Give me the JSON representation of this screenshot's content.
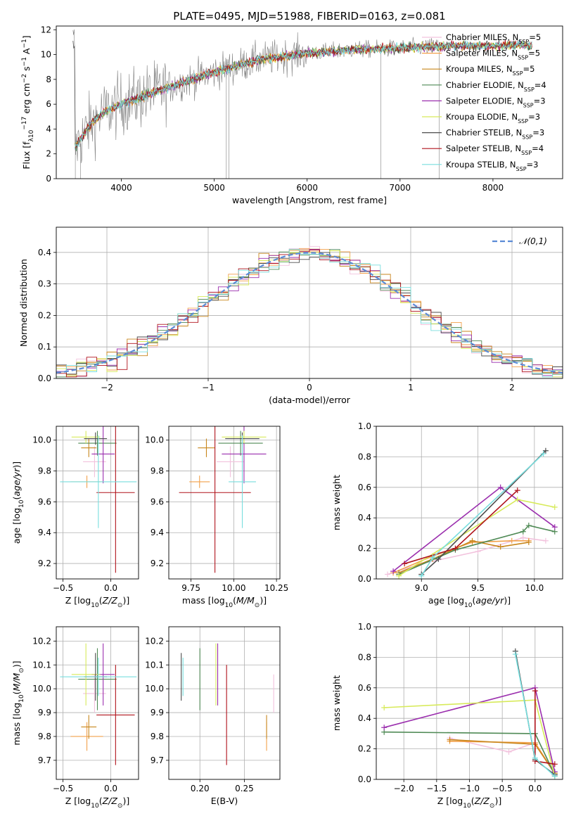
{
  "title": "PLATE=0495, MJD=51988, FIBERID=0163, z=0.081",
  "colors": {
    "Chabrier MILES": "#f2c2dd",
    "Salpeter MILES": "#f2a04a",
    "Kroupa MILES": "#c8861c",
    "Chabrier ELODIE": "#4f8a55",
    "Salpeter ELODIE": "#9b2fae",
    "Kroupa ELODIE": "#d7ea5a",
    "Chabrier STELIB": "#4d4d4d",
    "Salpeter STELIB": "#b0121b",
    "Kroupa STELIB": "#78dede",
    "data": "#808080",
    "normal": "#5b8bd6"
  },
  "chart_data": [
    {
      "id": "spectrum",
      "type": "line",
      "title": "PLATE=0495, MJD=51988, FIBERID=0163, z=0.081",
      "xlabel": "wavelength [Angstrom, rest frame]",
      "ylabel": "Flux [f_λ 10^-17 erg cm^-2 s^-1 A^-1]",
      "ylabel_parts": [
        "Flux [f",
        "λ",
        "10",
        "−17",
        " erg cm",
        "−2",
        " s",
        "−1",
        " A",
        "−1",
        "]"
      ],
      "xlim": [
        3300,
        8750
      ],
      "ylim": [
        0,
        12.3
      ],
      "xticks": [
        "4000",
        "5000",
        "6000",
        "7000",
        "8000"
      ],
      "xtick_values": [
        4000,
        5000,
        6000,
        7000,
        8000
      ],
      "yticks": [
        "0",
        "2",
        "4",
        "6",
        "8",
        "10",
        "12"
      ],
      "ytick_values": [
        0,
        2,
        4,
        6,
        8,
        10,
        12
      ],
      "continuum": [
        [
          3500,
          2.5
        ],
        [
          3650,
          4.2
        ],
        [
          3800,
          5.3
        ],
        [
          4000,
          6.0
        ],
        [
          4300,
          6.8
        ],
        [
          4600,
          7.6
        ],
        [
          5000,
          8.6
        ],
        [
          5500,
          9.6
        ],
        [
          6000,
          10.1
        ],
        [
          6500,
          10.4
        ],
        [
          7000,
          10.5
        ],
        [
          7500,
          10.7
        ],
        [
          8000,
          10.7
        ],
        [
          8300,
          10.8
        ],
        [
          8420,
          10.7
        ]
      ],
      "legend": [
        {
          "label": "Chabrier MILES, N",
          "sub": "SSP",
          "n": "=5"
        },
        {
          "label": "Salpeter MILES, N",
          "sub": "SSP",
          "n": "=5"
        },
        {
          "label": "Kroupa MILES, N",
          "sub": "SSP",
          "n": "=5"
        },
        {
          "label": "Chabrier ELODIE, N",
          "sub": "SSP",
          "n": "=4"
        },
        {
          "label": "Salpeter ELODIE, N",
          "sub": "SSP",
          "n": "=3"
        },
        {
          "label": "Kroupa ELODIE, N",
          "sub": "SSP",
          "n": "=3"
        },
        {
          "label": "Chabrier STELIB, N",
          "sub": "SSP",
          "n": "=3"
        },
        {
          "label": "Salpeter STELIB, N",
          "sub": "SSP",
          "n": "=4"
        },
        {
          "label": "Kroupa STELIB, N",
          "sub": "SSP",
          "n": "=3"
        }
      ]
    },
    {
      "id": "residuals",
      "type": "line",
      "xlabel": "(data-model)/error",
      "ylabel": "Normed distribution",
      "xlim": [
        -2.5,
        2.5
      ],
      "ylim": [
        0,
        0.48
      ],
      "xticks": [
        "−2",
        "−1",
        "0",
        "1",
        "2"
      ],
      "xtick_values": [
        -2,
        -1,
        0,
        1,
        2
      ],
      "yticks": [
        "0.0",
        "0.1",
        "0.2",
        "0.3",
        "0.4"
      ],
      "ytick_values": [
        0,
        0.1,
        0.2,
        0.3,
        0.4
      ],
      "grid": true,
      "legend_label": "𝒩(0,1)",
      "bin_width": 0.1
    },
    {
      "id": "age-vs-Z",
      "type": "scatter",
      "xlabel": "Z [log10(Z/Z⊙)]",
      "xlabel_parts": [
        "Z [log",
        "10",
        "(",
        "Z/Z",
        "⊙",
        ")]"
      ],
      "ylabel": "age [log10(age/yr)]",
      "ylabel_parts": [
        "age  [log",
        "10",
        "(",
        "age/yr",
        ")]"
      ],
      "xlim": [
        -0.57,
        0.29
      ],
      "ylim": [
        9.1,
        10.09
      ],
      "xticks": [
        "−0.5",
        "0.0"
      ],
      "xtick_values": [
        -0.5,
        0.0
      ],
      "yticks": [
        "9.2",
        "9.4",
        "9.6",
        "9.8",
        "10.0"
      ],
      "ytick_values": [
        9.2,
        9.4,
        9.6,
        9.8,
        10.0
      ],
      "grid": true,
      "points": [
        {
          "name": "Chabrier MILES",
          "x": -0.17,
          "xerr": 0.12,
          "y": 9.86,
          "yerr": 0.1
        },
        {
          "name": "Salpeter MILES",
          "x": -0.25,
          "xerr": 0.17,
          "y": 9.73,
          "yerr": 0.04
        },
        {
          "name": "Kroupa MILES",
          "x": -0.23,
          "xerr": 0.08,
          "y": 9.95,
          "yerr": 0.06
        },
        {
          "name": "Chabrier ELODIE",
          "x": -0.14,
          "xerr": 0.2,
          "y": 9.98,
          "yerr": 0.08
        },
        {
          "name": "Salpeter ELODIE",
          "x": -0.08,
          "xerr": 0.12,
          "y": 9.91,
          "yerr": 0.19
        },
        {
          "name": "Kroupa ELODIE",
          "x": -0.26,
          "xerr": 0.15,
          "y": 10.02,
          "yerr": 0.04
        },
        {
          "name": "Chabrier STELIB",
          "x": -0.16,
          "xerr": 0.12,
          "y": 10.01,
          "yerr": 0.04
        },
        {
          "name": "Salpeter STELIB",
          "x": 0.05,
          "xerr": 0.2,
          "y": 9.66,
          "yerr": 0.52
        },
        {
          "name": "Kroupa STELIB",
          "x": -0.13,
          "xerr": 0.4,
          "y": 9.73,
          "yerr": 0.3
        }
      ]
    },
    {
      "id": "age-vs-mass",
      "type": "scatter",
      "xlabel": "mass [log10(M/M⊙)]",
      "xlabel_parts": [
        "mass [log",
        "10",
        "(",
        "M/M",
        "⊙",
        ")]"
      ],
      "xlim": [
        9.62,
        10.27
      ],
      "ylim": [
        9.1,
        10.09
      ],
      "xticks": [
        "9.75",
        "10.00",
        "10.25"
      ],
      "xtick_values": [
        9.75,
        10.0,
        10.25
      ],
      "yticks": [
        "9.2",
        "9.4",
        "9.6",
        "9.8",
        "10.0"
      ],
      "ytick_values": [
        9.2,
        9.4,
        9.6,
        9.8,
        10.0
      ],
      "grid": true,
      "points": [
        {
          "name": "Chabrier MILES",
          "x": 9.98,
          "xerr": 0.08,
          "y": 9.86,
          "yerr": 0.1
        },
        {
          "name": "Salpeter MILES",
          "x": 9.8,
          "xerr": 0.06,
          "y": 9.73,
          "yerr": 0.04
        },
        {
          "name": "Kroupa MILES",
          "x": 9.84,
          "xerr": 0.05,
          "y": 9.95,
          "yerr": 0.06
        },
        {
          "name": "Chabrier ELODIE",
          "x": 10.04,
          "xerr": 0.13,
          "y": 9.98,
          "yerr": 0.08
        },
        {
          "name": "Salpeter ELODIE",
          "x": 10.06,
          "xerr": 0.13,
          "y": 9.91,
          "yerr": 0.19
        },
        {
          "name": "Kroupa ELODIE",
          "x": 10.06,
          "xerr": 0.13,
          "y": 10.02,
          "yerr": 0.04
        },
        {
          "name": "Chabrier STELIB",
          "x": 10.05,
          "xerr": 0.1,
          "y": 10.01,
          "yerr": 0.04
        },
        {
          "name": "Salpeter STELIB",
          "x": 9.89,
          "xerr": 0.21,
          "y": 9.66,
          "yerr": 0.52
        },
        {
          "name": "Kroupa STELIB",
          "x": 10.05,
          "xerr": 0.08,
          "y": 9.73,
          "yerr": 0.3
        }
      ]
    },
    {
      "id": "weight-vs-age",
      "type": "line",
      "xlabel": "age [log10(age/yr)]",
      "xlabel_parts": [
        "age  [log",
        "10",
        "(",
        "age/yr",
        ")]"
      ],
      "ylabel": "mass weight",
      "xlim": [
        8.6,
        10.25
      ],
      "ylim": [
        0,
        1.0
      ],
      "xticks": [
        "9.0",
        "9.5",
        "10.0"
      ],
      "xtick_values": [
        9.0,
        9.5,
        10.0
      ],
      "yticks": [
        "0.0",
        "0.2",
        "0.4",
        "0.6",
        "0.8",
        "1.0"
      ],
      "ytick_values": [
        0,
        0.2,
        0.4,
        0.6,
        0.8,
        1.0
      ],
      "grid": true,
      "series": [
        {
          "name": "Chabrier MILES",
          "points": [
            [
              8.7,
              0.03
            ],
            [
              9.0,
              0.1
            ],
            [
              9.5,
              0.18
            ],
            [
              9.9,
              0.27
            ],
            [
              10.1,
              0.25
            ]
          ]
        },
        {
          "name": "Salpeter MILES",
          "points": [
            [
              8.75,
              0.04
            ],
            [
              9.1,
              0.15
            ],
            [
              9.45,
              0.24
            ],
            [
              9.8,
              0.25
            ],
            [
              9.95,
              0.25
            ]
          ]
        },
        {
          "name": "Kroupa MILES",
          "points": [
            [
              8.8,
              0.04
            ],
            [
              9.1,
              0.13
            ],
            [
              9.45,
              0.25
            ],
            [
              9.7,
              0.21
            ],
            [
              9.95,
              0.24
            ]
          ]
        },
        {
          "name": "Chabrier ELODIE",
          "points": [
            [
              8.8,
              0.03
            ],
            [
              9.3,
              0.19
            ],
            [
              9.9,
              0.31
            ],
            [
              9.95,
              0.35
            ],
            [
              10.18,
              0.31
            ]
          ]
        },
        {
          "name": "Salpeter ELODIE",
          "points": [
            [
              8.75,
              0.05
            ],
            [
              9.7,
              0.6
            ],
            [
              10.18,
              0.34
            ]
          ]
        },
        {
          "name": "Kroupa ELODIE",
          "points": [
            [
              8.8,
              0.02
            ],
            [
              9.85,
              0.52
            ],
            [
              10.18,
              0.47
            ]
          ]
        },
        {
          "name": "Chabrier STELIB",
          "points": [
            [
              9.0,
              0.03
            ],
            [
              9.15,
              0.13
            ],
            [
              10.1,
              0.84
            ]
          ]
        },
        {
          "name": "Salpeter STELIB",
          "points": [
            [
              8.85,
              0.1
            ],
            [
              9.3,
              0.2
            ],
            [
              9.85,
              0.58
            ]
          ]
        },
        {
          "name": "Kroupa STELIB",
          "points": [
            [
              9.0,
              0.02
            ],
            [
              9.1,
              0.14
            ],
            [
              10.08,
              0.82
            ]
          ]
        }
      ]
    },
    {
      "id": "mass-vs-Z",
      "type": "scatter",
      "xlabel": "Z [log10(Z/Z⊙)]",
      "xlabel_parts": [
        "Z [log",
        "10",
        "(",
        "Z/Z",
        "⊙",
        ")]"
      ],
      "ylabel": "mass [log10(M/M⊙)]",
      "ylabel_parts": [
        "mass [log",
        "10",
        "(",
        "M/M",
        "⊙",
        ")]"
      ],
      "xlim": [
        -0.57,
        0.29
      ],
      "ylim": [
        9.62,
        10.26
      ],
      "xticks": [
        "−0.5",
        "0.0"
      ],
      "xtick_values": [
        -0.5,
        0.0
      ],
      "yticks": [
        "9.7",
        "9.8",
        "9.9",
        "10.0",
        "10.1",
        "10.2"
      ],
      "ytick_values": [
        9.7,
        9.8,
        9.9,
        10.0,
        10.1,
        10.2
      ],
      "grid": true,
      "points": [
        {
          "name": "Chabrier MILES",
          "x": -0.17,
          "xerr": 0.12,
          "y": 9.98,
          "yerr": 0.08
        },
        {
          "name": "Salpeter MILES",
          "x": -0.25,
          "xerr": 0.17,
          "y": 9.8,
          "yerr": 0.06
        },
        {
          "name": "Kroupa MILES",
          "x": -0.23,
          "xerr": 0.08,
          "y": 9.84,
          "yerr": 0.05
        },
        {
          "name": "Chabrier ELODIE",
          "x": -0.14,
          "xerr": 0.2,
          "y": 10.04,
          "yerr": 0.13
        },
        {
          "name": "Salpeter ELODIE",
          "x": -0.08,
          "xerr": 0.12,
          "y": 10.06,
          "yerr": 0.13
        },
        {
          "name": "Kroupa ELODIE",
          "x": -0.26,
          "xerr": 0.15,
          "y": 10.06,
          "yerr": 0.13
        },
        {
          "name": "Chabrier STELIB",
          "x": -0.16,
          "xerr": 0.12,
          "y": 10.05,
          "yerr": 0.1
        },
        {
          "name": "Salpeter STELIB",
          "x": 0.05,
          "xerr": 0.2,
          "y": 9.89,
          "yerr": 0.21
        },
        {
          "name": "Kroupa STELIB",
          "x": -0.13,
          "xerr": 0.4,
          "y": 10.05,
          "yerr": 0.08
        }
      ]
    },
    {
      "id": "mass-vs-ebv",
      "type": "scatter",
      "xlabel": "E(B-V)",
      "xlim": [
        0.165,
        0.29
      ],
      "ylim": [
        9.62,
        10.26
      ],
      "xticks": [
        "0.20",
        "0.25"
      ],
      "xtick_values": [
        0.2,
        0.25
      ],
      "yticks": [
        "9.7",
        "9.8",
        "9.9",
        "10.0",
        "10.1",
        "10.2"
      ],
      "ytick_values": [
        9.7,
        9.8,
        9.9,
        10.0,
        10.1,
        10.2
      ],
      "grid": true,
      "points": [
        {
          "name": "Chabrier MILES",
          "x": 0.283,
          "y": 9.98,
          "yerr": 0.08
        },
        {
          "name": "Salpeter MILES",
          "x": 0.275,
          "y": 9.8,
          "yerr": 0.06
        },
        {
          "name": "Kroupa MILES",
          "x": 0.275,
          "y": 9.84,
          "yerr": 0.05
        },
        {
          "name": "Chabrier ELODIE",
          "x": 0.2,
          "y": 10.04,
          "yerr": 0.13
        },
        {
          "name": "Salpeter ELODIE",
          "x": 0.22,
          "y": 10.06,
          "yerr": 0.13
        },
        {
          "name": "Kroupa ELODIE",
          "x": 0.218,
          "y": 10.06,
          "yerr": 0.13
        },
        {
          "name": "Chabrier STELIB",
          "x": 0.179,
          "y": 10.05,
          "yerr": 0.1
        },
        {
          "name": "Salpeter STELIB",
          "x": 0.23,
          "y": 9.89,
          "yerr": 0.21
        },
        {
          "name": "Kroupa STELIB",
          "x": 0.181,
          "y": 10.05,
          "yerr": 0.08
        }
      ]
    },
    {
      "id": "weight-vs-Z",
      "type": "line",
      "xlabel": "Z [log10(Z/Z⊙)]",
      "xlabel_parts": [
        "Z [log",
        "10",
        "(",
        "Z/Z",
        "⊙",
        ")]"
      ],
      "ylabel": "mass weight",
      "xlim": [
        -2.42,
        0.42
      ],
      "ylim": [
        0,
        1.0
      ],
      "xticks": [
        "−2.0",
        "−1.5",
        "−1.0",
        "−0.5",
        "0.0"
      ],
      "xtick_values": [
        -2.0,
        -1.5,
        -1.0,
        -0.5,
        0.0
      ],
      "yticks": [
        "0.0",
        "0.2",
        "0.4",
        "0.6",
        "0.8",
        "1.0"
      ],
      "ytick_values": [
        0,
        0.2,
        0.4,
        0.6,
        0.8,
        1.0
      ],
      "grid": true,
      "series": [
        {
          "name": "Chabrier MILES",
          "points": [
            [
              -1.3,
              0.27
            ],
            [
              -0.4,
              0.18
            ],
            [
              0.0,
              0.24
            ],
            [
              0.3,
              0.03
            ]
          ]
        },
        {
          "name": "Salpeter MILES",
          "points": [
            [
              -1.3,
              0.25
            ],
            [
              0.0,
              0.24
            ],
            [
              0.3,
              0.04
            ]
          ]
        },
        {
          "name": "Kroupa MILES",
          "points": [
            [
              -1.3,
              0.26
            ],
            [
              0.0,
              0.23
            ],
            [
              0.3,
              0.04
            ]
          ]
        },
        {
          "name": "Chabrier ELODIE",
          "points": [
            [
              -2.3,
              0.31
            ],
            [
              0.0,
              0.3
            ],
            [
              0.3,
              0.03
            ]
          ]
        },
        {
          "name": "Salpeter ELODIE",
          "points": [
            [
              -2.3,
              0.34
            ],
            [
              0.0,
              0.6
            ],
            [
              0.3,
              0.05
            ]
          ]
        },
        {
          "name": "Kroupa ELODIE",
          "points": [
            [
              -2.3,
              0.47
            ],
            [
              0.0,
              0.52
            ],
            [
              0.3,
              0.02
            ]
          ]
        },
        {
          "name": "Chabrier STELIB",
          "points": [
            [
              -0.3,
              0.84
            ],
            [
              0.0,
              0.13
            ],
            [
              0.3,
              0.03
            ]
          ]
        },
        {
          "name": "Salpeter STELIB",
          "points": [
            [
              0.0,
              0.58
            ],
            [
              0.0,
              0.12
            ],
            [
              0.3,
              0.1
            ]
          ]
        },
        {
          "name": "Kroupa STELIB",
          "points": [
            [
              -0.3,
              0.82
            ],
            [
              0.0,
              0.14
            ],
            [
              0.3,
              0.02
            ]
          ]
        }
      ]
    }
  ]
}
